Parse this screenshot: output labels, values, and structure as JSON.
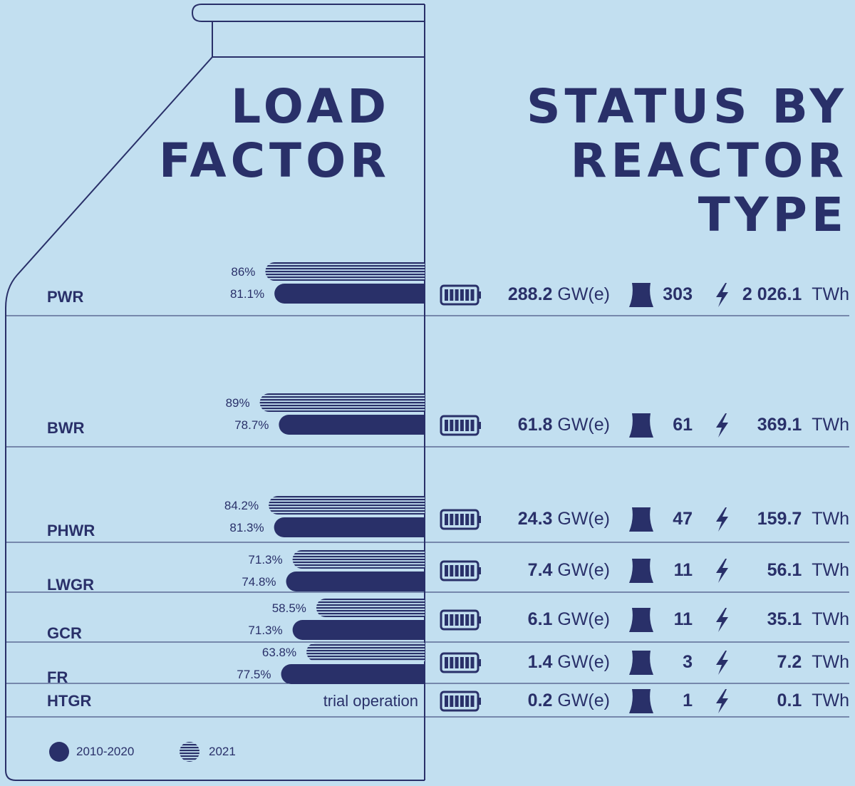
{
  "header": {
    "left_title": [
      "LOAD",
      "FACTOR"
    ],
    "right_title": [
      "STATUS BY",
      "REACTOR",
      "TYPE"
    ]
  },
  "colors": {
    "background": "#c2dff0",
    "ink": "#293069"
  },
  "icons": {
    "capacity": "battery-icon",
    "reactors": "cooling-tower-icon",
    "generation": "lightning-icon"
  },
  "chart_data": {
    "type": "bar",
    "orientation": "horizontal",
    "unit": "%",
    "xlim": [
      0,
      100
    ],
    "categories": [
      "PWR",
      "BWR",
      "PHWR",
      "LWGR",
      "GCR",
      "FR",
      "HTGR"
    ],
    "series": [
      {
        "name": "2021",
        "style": "striped",
        "values": [
          86,
          89,
          84.2,
          71.3,
          58.5,
          63.8,
          null
        ],
        "labels": [
          "86%",
          "89%",
          "84.2%",
          "71.3%",
          "58.5%",
          "63.8%",
          ""
        ]
      },
      {
        "name": "2010-2020",
        "style": "solid",
        "values": [
          81.1,
          78.7,
          81.3,
          74.8,
          71.3,
          77.5,
          null
        ],
        "labels": [
          "81.1%",
          "78.7%",
          "81.3%",
          "74.8%",
          "71.3%",
          "77.5%",
          ""
        ]
      }
    ],
    "annotations": [
      {
        "category": "HTGR",
        "text": "trial operation"
      }
    ],
    "legend": {
      "placement": "bottom-left",
      "entries": [
        "2010-2020",
        "2021"
      ]
    }
  },
  "status": [
    {
      "type": "PWR",
      "capacity": "288.2",
      "capacity_unit": "GW(e)",
      "reactors": "303",
      "generation": "2 026.1",
      "generation_unit": "TWh"
    },
    {
      "type": "BWR",
      "capacity": "61.8",
      "capacity_unit": "GW(e)",
      "reactors": "61",
      "generation": "369.1",
      "generation_unit": "TWh"
    },
    {
      "type": "PHWR",
      "capacity": "24.3",
      "capacity_unit": "GW(e)",
      "reactors": "47",
      "generation": "159.7",
      "generation_unit": "TWh"
    },
    {
      "type": "LWGR",
      "capacity": "7.4",
      "capacity_unit": "GW(e)",
      "reactors": "11",
      "generation": "56.1",
      "generation_unit": "TWh"
    },
    {
      "type": "GCR",
      "capacity": "6.1",
      "capacity_unit": "GW(e)",
      "reactors": "11",
      "generation": "35.1",
      "generation_unit": "TWh"
    },
    {
      "type": "FR",
      "capacity": "1.4",
      "capacity_unit": "GW(e)",
      "reactors": "3",
      "generation": "7.2",
      "generation_unit": "TWh"
    },
    {
      "type": "HTGR",
      "capacity": "0.2",
      "capacity_unit": "GW(e)",
      "reactors": "1",
      "generation": "0.1",
      "generation_unit": "TWh"
    }
  ]
}
